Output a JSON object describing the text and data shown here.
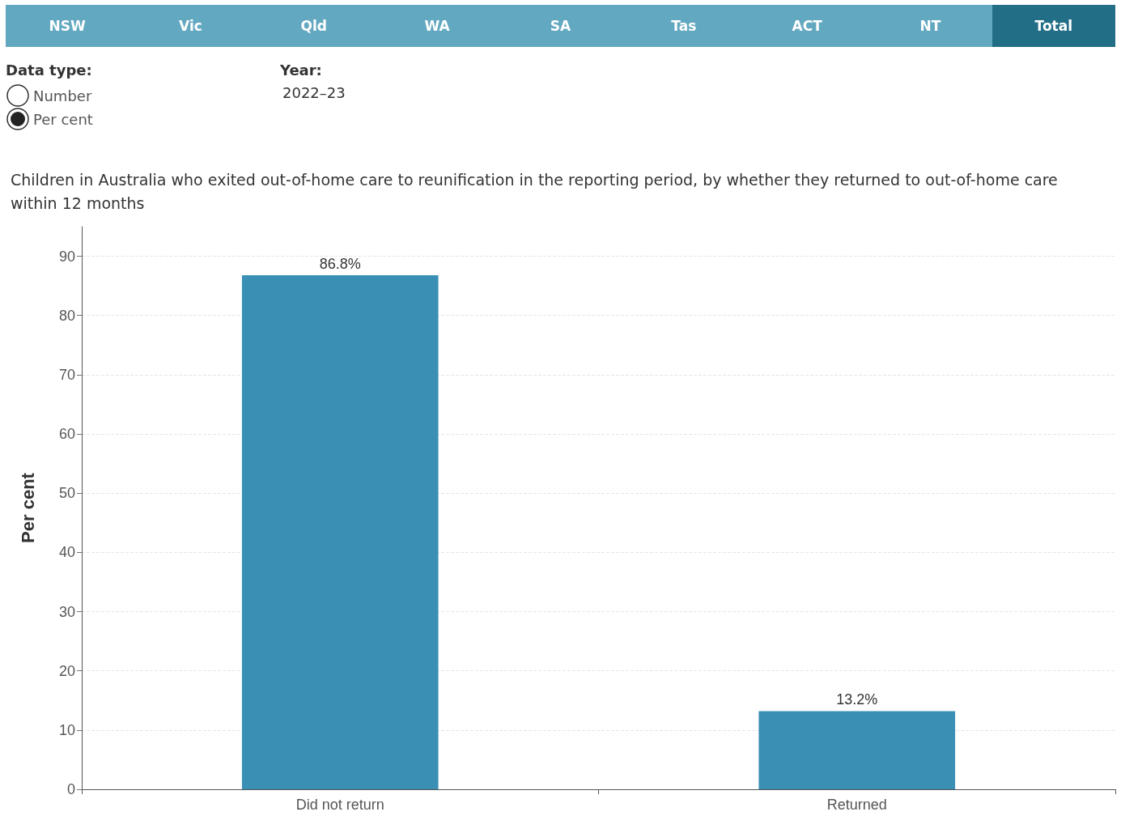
{
  "chart_data": {
    "type": "bar",
    "title": "Children in Australia who exited out-of-home care to reunification in the reporting period, by whether they returned to out-of-home care within 12 months",
    "ylabel": "Per cent",
    "categories": [
      "Did not return",
      "Returned"
    ],
    "values": [
      86.8,
      13.2
    ],
    "value_labels": [
      "86.8%",
      "13.2%"
    ],
    "color": "#3a8fb4",
    "ylim": [
      0,
      95
    ],
    "yticks": [
      0,
      10,
      20,
      30,
      40,
      50,
      60,
      70,
      80,
      90
    ],
    "grid": "y",
    "annotations": [
      "NSW",
      "Vic",
      "Qld",
      "WA",
      "SA",
      "Tas",
      "ACT",
      "NT",
      "Total",
      "Data type:",
      "Number",
      "Per cent",
      "Year:",
      "2022–23"
    ]
  }
}
